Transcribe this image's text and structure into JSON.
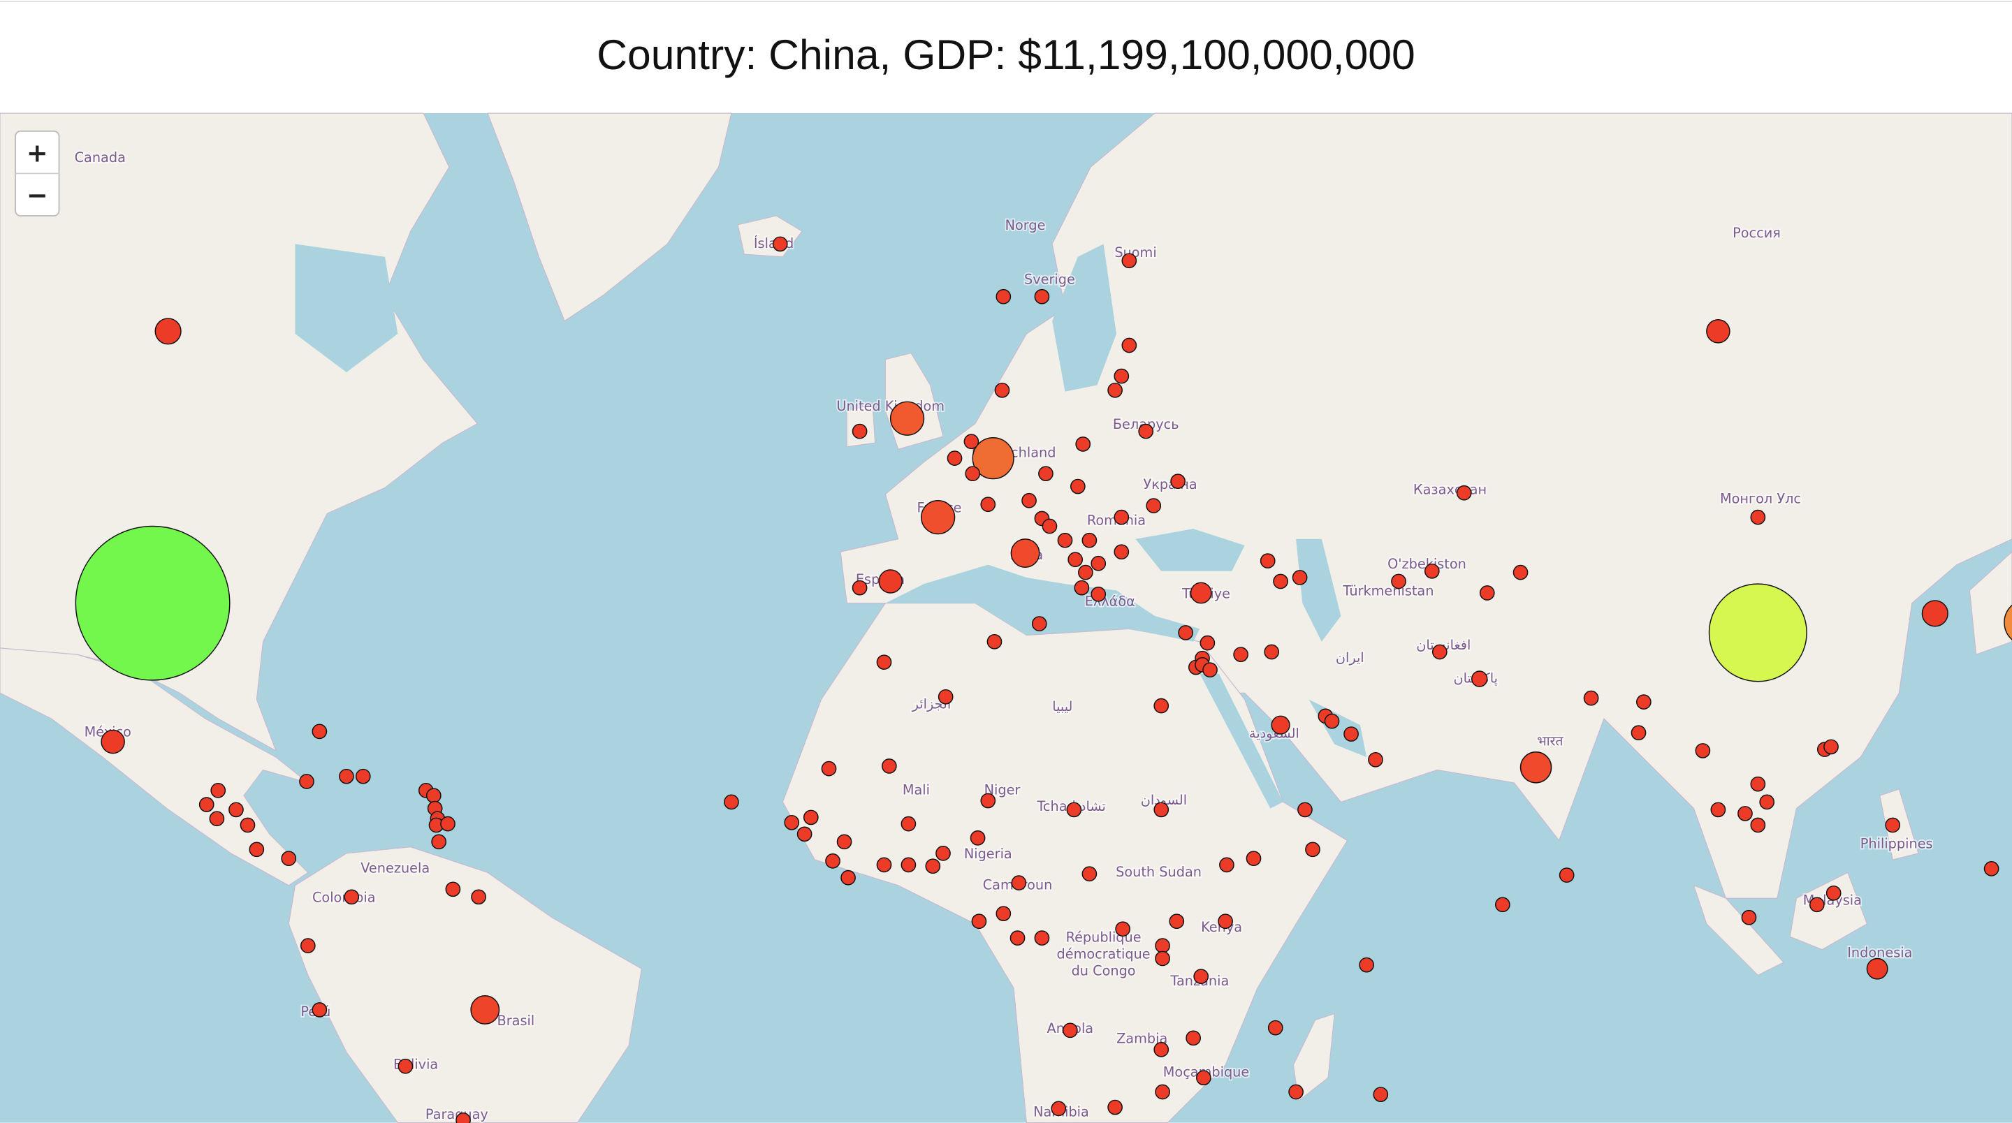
{
  "header": {
    "title": "Country: China, GDP: $11,199,100,000,000"
  },
  "zoom": {
    "in": "+",
    "out": "−"
  },
  "map_labels": [
    "Canada",
    "Ísland",
    "Norge",
    "Suomi",
    "Sverige",
    "Россия",
    "United Kingdom",
    "Deutschland",
    "Беларусь",
    "Україна",
    "France",
    "România",
    "España",
    "Italia",
    "Türkiye",
    "Ελλάδα",
    "Казахстан",
    "Монгол Улс",
    "O'zbekiston",
    "Türkmenistan",
    "ایران",
    "افغانستان",
    "پاکستان",
    "भारत",
    "México",
    "Venezuela",
    "Colombia",
    "Perú",
    "Brasil",
    "Bolivia",
    "Mali",
    "Niger",
    "Tchad تشاد",
    "السودان",
    "South Sudan",
    "Nigeria",
    "Cameroun",
    "République",
    "démocratique",
    "du Congo",
    "Kenya",
    "Tanzania",
    "Angola",
    "Zambia",
    "Moçambique",
    "Namibia",
    "Philippines",
    "Malaysia",
    "Indonesia",
    "ليبيا",
    "السعودية",
    "الجزائر",
    "Paraguay"
  ]
}
